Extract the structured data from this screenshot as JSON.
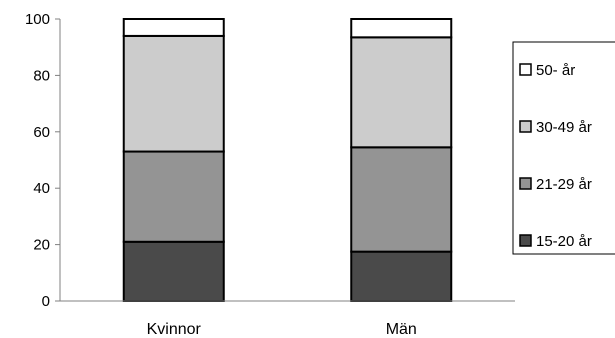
{
  "chart_data": {
    "type": "bar",
    "stacked": true,
    "categories": [
      "Kvinnor",
      "Män"
    ],
    "series": [
      {
        "name": "15-20 år",
        "values": [
          21,
          17.5
        ],
        "color": "#4a4a4a"
      },
      {
        "name": "21-29 år",
        "values": [
          32,
          37
        ],
        "color": "#949494"
      },
      {
        "name": "30-49 år",
        "values": [
          41,
          39
        ],
        "color": "#cccccc"
      },
      {
        "name": "50- år",
        "values": [
          6,
          6.5
        ],
        "color": "#ffffff"
      }
    ],
    "yticks": [
      "0",
      "20",
      "40",
      "60",
      "80",
      "100"
    ],
    "ylim": [
      0,
      100
    ],
    "grid": false,
    "legend": "right"
  }
}
